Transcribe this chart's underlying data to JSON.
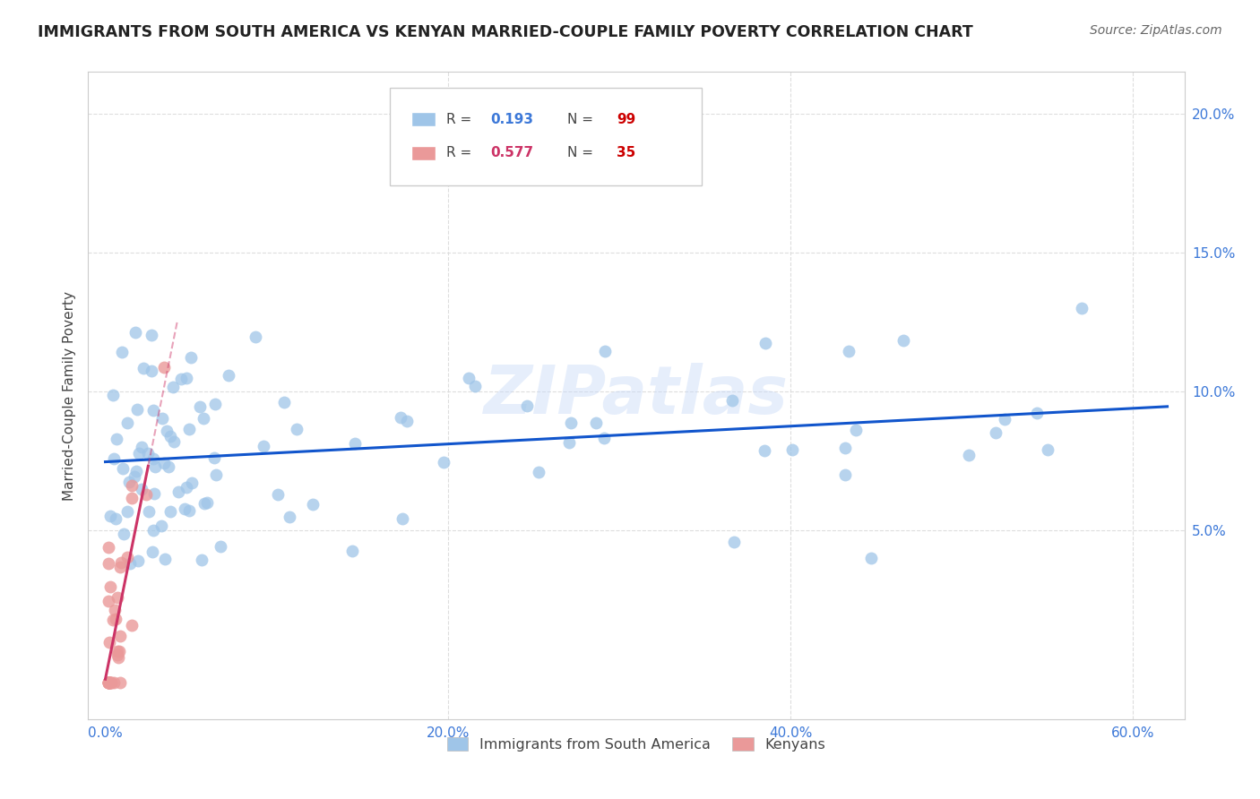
{
  "title": "IMMIGRANTS FROM SOUTH AMERICA VS KENYAN MARRIED-COUPLE FAMILY POVERTY CORRELATION CHART",
  "source": "Source: ZipAtlas.com",
  "xlim": [
    -0.01,
    0.63
  ],
  "ylim": [
    -0.018,
    0.215
  ],
  "ylabel": "Married-Couple Family Poverty",
  "blue_R": 0.193,
  "blue_N": 99,
  "pink_R": 0.577,
  "pink_N": 35,
  "blue_color": "#9fc5e8",
  "pink_color": "#ea9999",
  "blue_line_color": "#1155cc",
  "pink_line_color": "#cc3366",
  "legend_label_blue": "Immigrants from South America",
  "legend_label_pink": "Kenyans",
  "watermark": "ZIPatlas",
  "R_color_blue": "#3c78d8",
  "R_color_pink": "#cc3366",
  "N_color": "#cc0000",
  "title_color": "#222222",
  "source_color": "#666666",
  "tick_color": "#3c78d8",
  "ylabel_color": "#444444",
  "grid_color": "#dddddd"
}
